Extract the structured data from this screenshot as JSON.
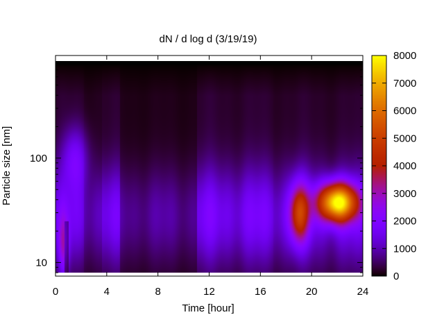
{
  "chart_data": {
    "type": "heatmap",
    "title": "dN / d log d (3/19/19)",
    "xlabel": "Time [hour]",
    "ylabel": "Particle size [nm]",
    "xlim": [
      0,
      24
    ],
    "ylim": [
      8,
      850
    ],
    "x_ticks": [
      0,
      4,
      8,
      12,
      16,
      20,
      24
    ],
    "x_tick_labels": [
      "0",
      "4",
      "8",
      "12",
      "16",
      "20",
      "24"
    ],
    "y_scale": "log",
    "y_ticks": [
      10,
      100
    ],
    "y_tick_labels": [
      "10",
      "100"
    ],
    "colorbar": {
      "range": [
        0,
        8000
      ],
      "ticks": [
        0,
        1000,
        2000,
        3000,
        4000,
        5000,
        6000,
        7000,
        8000
      ],
      "tick_labels": [
        "0",
        "1000",
        "2000",
        "3000",
        "4000",
        "5000",
        "6000",
        "7000",
        "8000"
      ],
      "colormap": "gnuplot"
    },
    "features": [
      {
        "time_hour": 22.0,
        "size_nm": 38,
        "peak_value": 7500
      },
      {
        "time_hour": 19.0,
        "size_nm": 30,
        "peak_value": 4300
      },
      {
        "time_hour": 1.5,
        "size_nm": 100,
        "peak_value": 2200
      },
      {
        "time_hour": 0.6,
        "size_nm": 14,
        "peak_value": 2600
      }
    ],
    "grid": false
  }
}
